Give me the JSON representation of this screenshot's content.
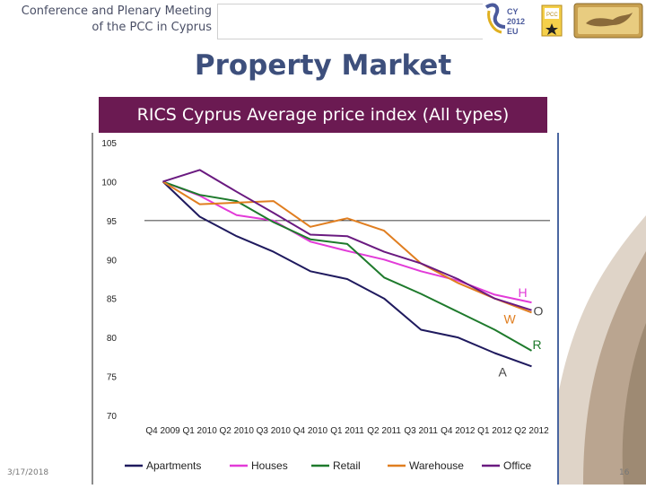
{
  "header": {
    "line1": "Conference and Plenary Meeting",
    "line2": "of the PCC in Cyprus"
  },
  "slide": {
    "title": "Property Market",
    "chart_title": "RICS Cyprus Average price index (All types)"
  },
  "footer": {
    "date": "3/17/2018",
    "page": "16"
  },
  "colors": {
    "title": "#3d4f7c",
    "chart_title_bg": "#6b1a52"
  },
  "chart_data": {
    "type": "line",
    "title": "RICS Cyprus Average price index (All types)",
    "categories": [
      "Q4 2009",
      "Q1 2010",
      "Q2 2010",
      "Q3 2010",
      "Q4 2010",
      "Q1 2011",
      "Q2 2011",
      "Q3 2011",
      "Q4 2012",
      "Q1 2012",
      "Q2 2012"
    ],
    "ylim": [
      70,
      105
    ],
    "yticks": [
      105,
      100,
      95,
      90,
      85,
      80,
      75,
      70
    ],
    "grid": "y=95 only",
    "legend_position": "bottom",
    "series": [
      {
        "name": "Apartments",
        "color": "#1f1a5e",
        "values": [
          100,
          95.5,
          93,
          91,
          88.5,
          87.5,
          85,
          81,
          80,
          78,
          76.3
        ]
      },
      {
        "name": "Houses",
        "color": "#e23bd8",
        "values": [
          100,
          98.2,
          95.7,
          95,
          92.3,
          91.1,
          90,
          88.5,
          87.3,
          85.5,
          84.5
        ]
      },
      {
        "name": "Retail",
        "color": "#1e7a2c",
        "values": [
          100,
          98.3,
          97.5,
          94.8,
          92.6,
          92,
          87.7,
          85.6,
          83.3,
          81,
          78.3
        ]
      },
      {
        "name": "Warehouse",
        "color": "#e07e20",
        "values": [
          100,
          97.1,
          97.3,
          97.5,
          94.2,
          95.3,
          93.7,
          89.5,
          87,
          85,
          83.2
        ]
      },
      {
        "name": "Office",
        "color": "#6a1a80",
        "values": [
          100,
          101.5,
          98.7,
          96,
          93.2,
          93,
          91,
          89.5,
          87.5,
          85,
          83.5
        ]
      }
    ],
    "annotations": [
      {
        "text": "H",
        "series": "Houses",
        "color": "#e23bd8"
      },
      {
        "text": "W",
        "series": "Warehouse",
        "color": "#e07e20"
      },
      {
        "text": "O",
        "series": "Office",
        "color": "#444444"
      },
      {
        "text": "R",
        "series": "Retail",
        "color": "#1e7a2c"
      },
      {
        "text": "A",
        "series": "Apartments",
        "color": "#444444"
      }
    ]
  }
}
